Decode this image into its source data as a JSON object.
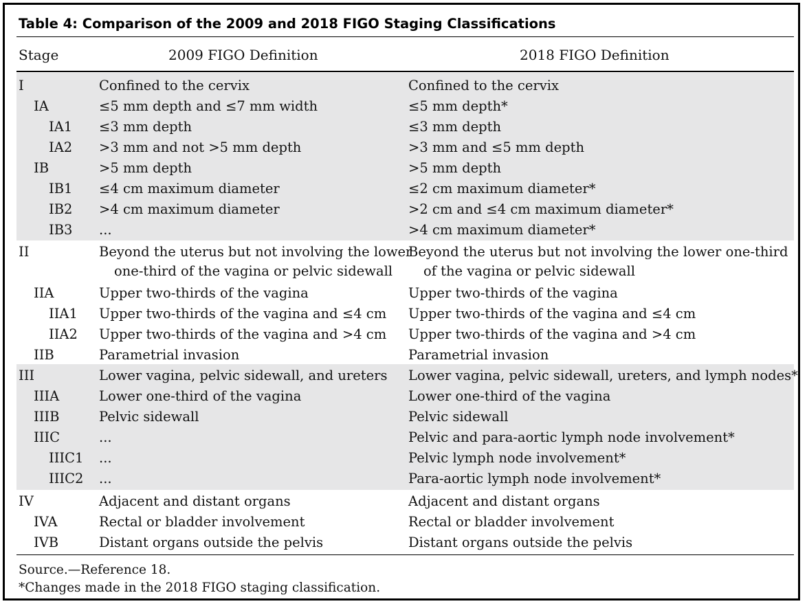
{
  "table": {
    "title": "Table 4: Comparison of the 2009 and 2018 FIGO Staging Classifications",
    "headers": {
      "stage": "Stage",
      "def2009": "2009 FIGO Definition",
      "def2018": "2018 FIGO Definition"
    },
    "rows": [
      {
        "stage": "I",
        "def2009": "Confined to the cervix",
        "def2018": "Confined to the cervix"
      },
      {
        "stage": "IA",
        "def2009": "≤5 mm depth and ≤7 mm width",
        "def2018": "≤5 mm depth*"
      },
      {
        "stage": "IA1",
        "def2009": "≤3 mm depth",
        "def2018": "≤3 mm depth"
      },
      {
        "stage": "IA2",
        "def2009": ">3 mm and not >5 mm depth",
        "def2018": ">3 mm and ≤5 mm depth"
      },
      {
        "stage": "IB",
        "def2009": ">5 mm depth",
        "def2018": ">5 mm depth"
      },
      {
        "stage": "IB1",
        "def2009": "≤4 cm maximum diameter",
        "def2018": "≤2 cm maximum diameter*"
      },
      {
        "stage": "IB2",
        "def2009": ">4 cm maximum diameter",
        "def2018": ">2 cm and ≤4 cm maximum diameter*"
      },
      {
        "stage": "IB3",
        "def2009": "...",
        "def2018": ">4 cm maximum diameter*"
      },
      {
        "stage": "II",
        "def2009": "Beyond the uterus but not involving the lower",
        "def2018": "Beyond the uterus but not involving the lower one-third"
      },
      {
        "stage": "",
        "def2009": "one-third of the vagina or pelvic sidewall",
        "def2018": "of the vagina or pelvic sidewall"
      },
      {
        "stage": "IIA",
        "def2009": "Upper two-thirds of the vagina",
        "def2018": "Upper two-thirds of the vagina"
      },
      {
        "stage": "IIA1",
        "def2009": "Upper two-thirds of the vagina and ≤4 cm",
        "def2018": "Upper two-thirds of the vagina and ≤4 cm"
      },
      {
        "stage": "IIA2",
        "def2009": "Upper two-thirds of the vagina and >4 cm",
        "def2018": "Upper two-thirds of the vagina and >4 cm"
      },
      {
        "stage": "IIB",
        "def2009": "Parametrial invasion",
        "def2018": "Parametrial invasion"
      },
      {
        "stage": "III",
        "def2009": "Lower vagina, pelvic sidewall, and ureters",
        "def2018": "Lower vagina, pelvic sidewall, ureters, and lymph nodes*"
      },
      {
        "stage": "IIIA",
        "def2009": "Lower one-third of the vagina",
        "def2018": "Lower one-third of the vagina"
      },
      {
        "stage": "IIIB",
        "def2009": "Pelvic sidewall",
        "def2018": "Pelvic sidewall"
      },
      {
        "stage": "IIIC",
        "def2009": "...",
        "def2018": "Pelvic and para-aortic lymph node involvement*"
      },
      {
        "stage": "IIIC1",
        "def2009": "...",
        "def2018": "Pelvic lymph node involvement*"
      },
      {
        "stage": "IIIC2",
        "def2009": "...",
        "def2018": "Para-aortic lymph node involvement*"
      },
      {
        "stage": "IV",
        "def2009": "Adjacent and distant organs",
        "def2018": "Adjacent and distant organs"
      },
      {
        "stage": "IVA",
        "def2009": "Rectal or bladder involvement",
        "def2018": "Rectal or bladder involvement"
      },
      {
        "stage": "IVB",
        "def2009": "Distant organs outside the pelvis",
        "def2018": "Distant organs outside the pelvis"
      }
    ],
    "footnotes": {
      "source": "Source.—Reference 18.",
      "changes": "*Changes made in the 2018 FIGO staging classification."
    },
    "colors": {
      "shaded_group": "#e6e6e7"
    }
  }
}
